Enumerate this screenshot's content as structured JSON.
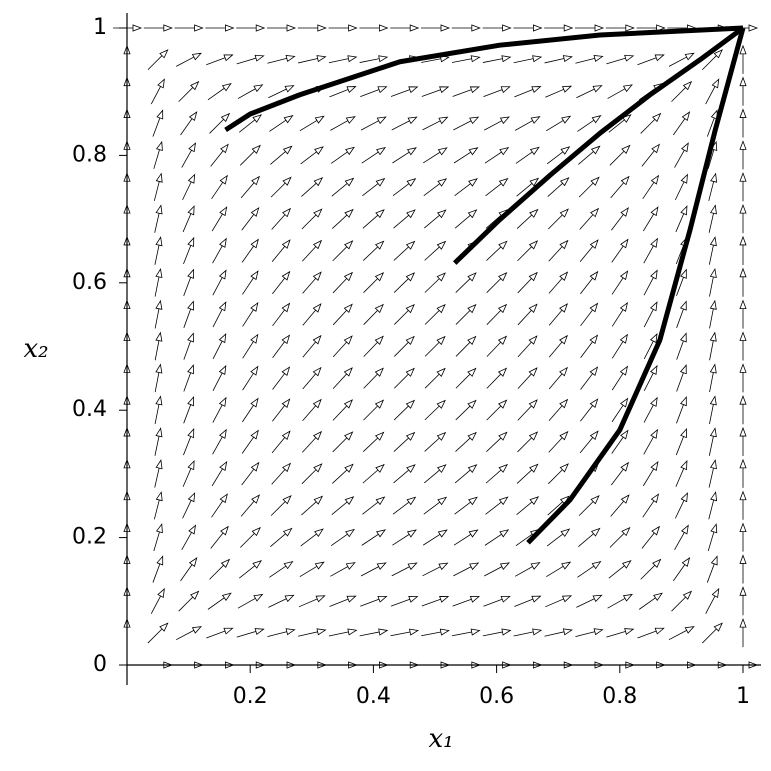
{
  "chart_data": {
    "type": "line",
    "xlabel": "x₁",
    "ylabel": "x₂",
    "xlim": [
      0,
      1
    ],
    "ylim": [
      0,
      1
    ],
    "xticks": [
      0.2,
      0.4,
      0.6,
      0.8,
      1
    ],
    "yticks": [
      0,
      0.2,
      0.4,
      0.6,
      0.8,
      1
    ],
    "series": [
      {
        "color": "#000000",
        "x": [
          0.16,
          0.2,
          0.28,
          0.443,
          0.605,
          0.768,
          1
        ],
        "values": [
          0.84,
          0.865,
          0.895,
          0.947,
          0.973,
          0.989,
          1
        ]
      },
      {
        "color": "#000000",
        "x": [
          0.532,
          0.605,
          0.687,
          0.768,
          0.849,
          0.93,
          1
        ],
        "values": [
          0.631,
          0.699,
          0.769,
          0.835,
          0.895,
          0.95,
          1
        ]
      },
      {
        "color": "#000000",
        "x": [
          0.651,
          0.719,
          0.8,
          0.865,
          0.914,
          0.955,
          1
        ],
        "values": [
          0.192,
          0.259,
          0.369,
          0.51,
          0.683,
          0.84,
          1
        ]
      }
    ]
  }
}
